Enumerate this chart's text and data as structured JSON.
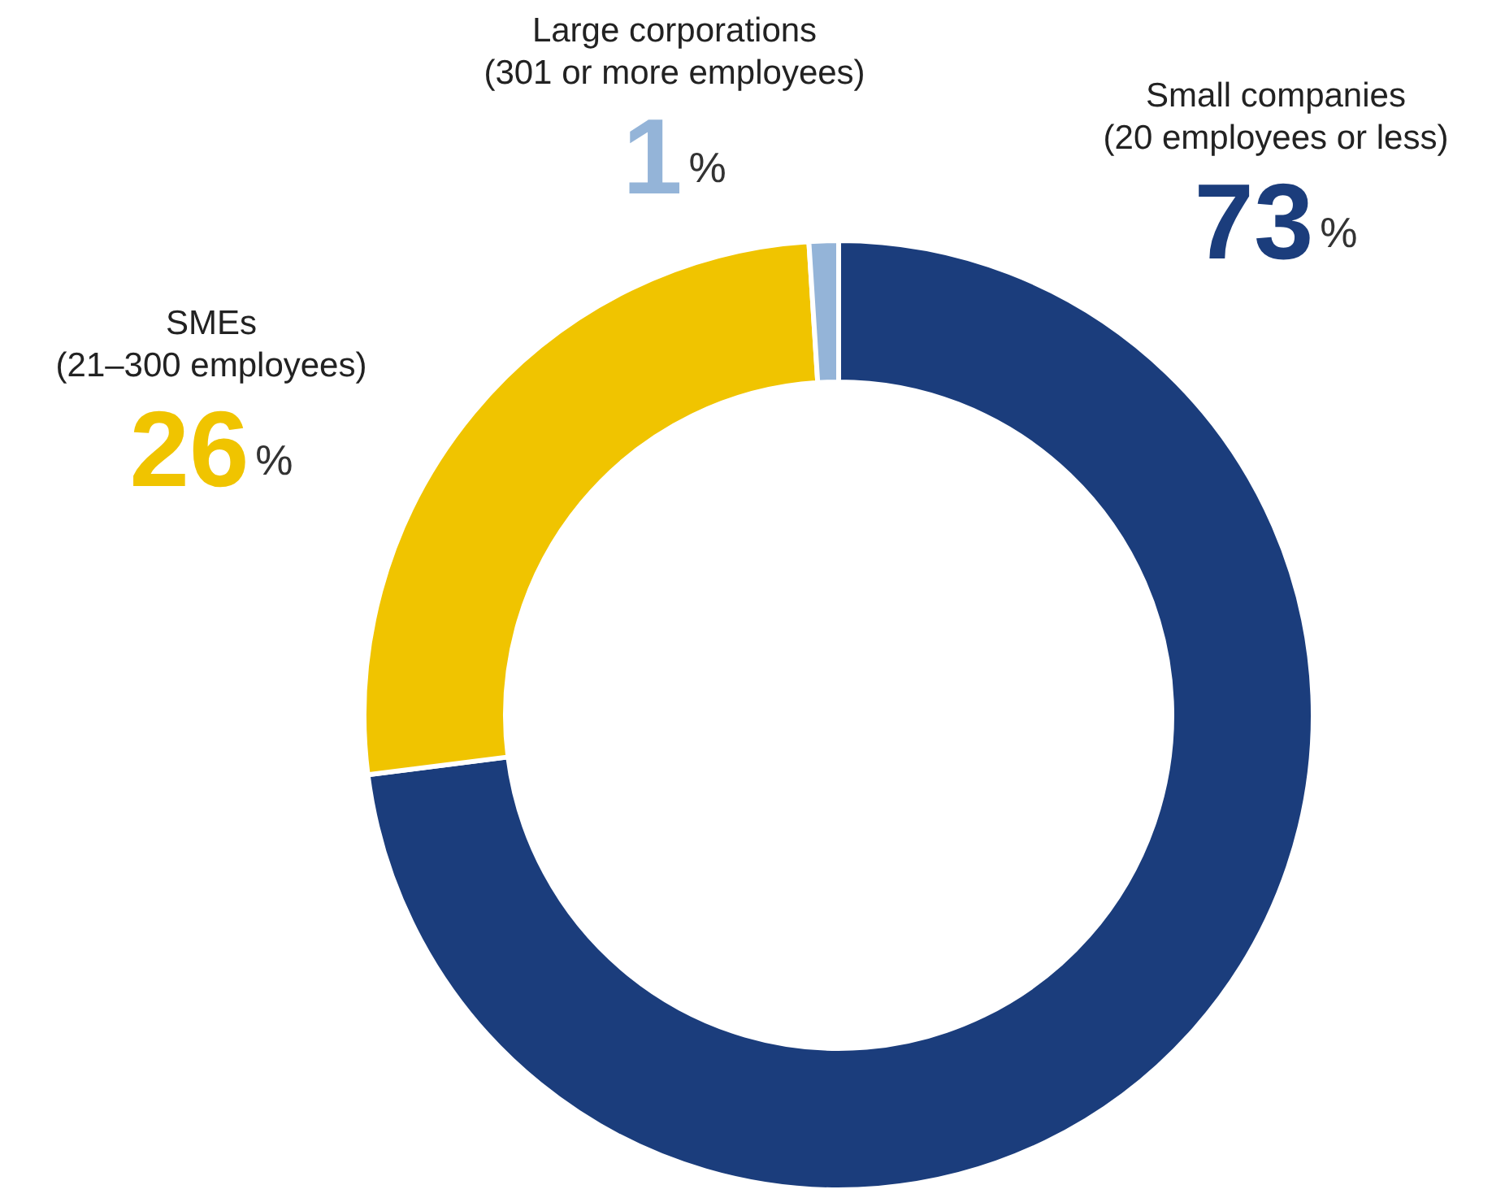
{
  "chart_data": {
    "type": "donut",
    "categories": [
      "Small companies\n(20 employees or less)",
      "SMEs\n(21–300 employees)",
      "Large corporations\n(301 or more employees)"
    ],
    "values": [
      73,
      26,
      1
    ],
    "colors": [
      "#1b3d7c",
      "#f0c400",
      "#94b4d8"
    ],
    "value_labels": [
      "73%",
      "26%",
      "1%"
    ],
    "legend": false
  }
}
